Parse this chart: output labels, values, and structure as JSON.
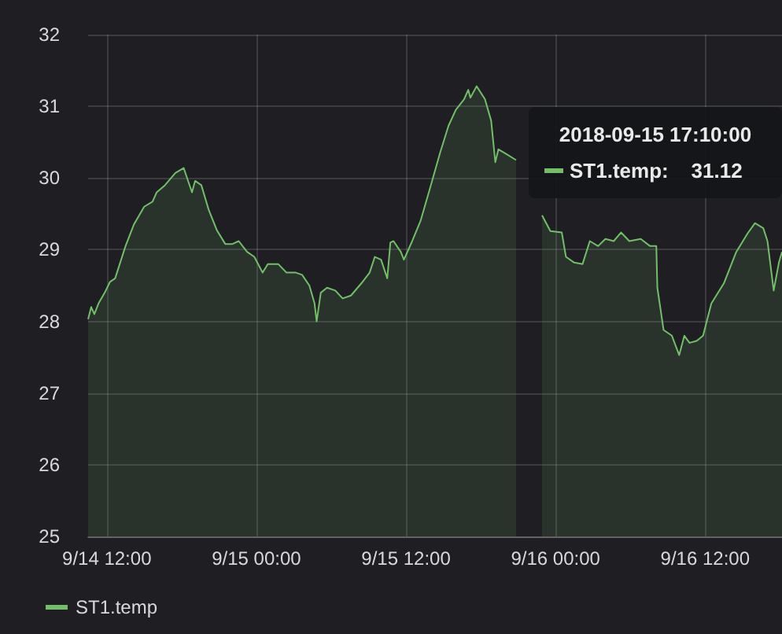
{
  "chart_data": {
    "type": "area",
    "ylim": [
      25,
      32
    ],
    "yticks": [
      25,
      26,
      27,
      28,
      29,
      30,
      31,
      32
    ],
    "xlim": [
      "2018-09-14T10:30",
      "2018-09-16T18:10"
    ],
    "xticks": [
      {
        "value": "2018-09-14T12:00",
        "label": "9/14 12:00"
      },
      {
        "value": "2018-09-15T00:00",
        "label": "9/15 00:00"
      },
      {
        "value": "2018-09-15T12:00",
        "label": "9/15 12:00"
      },
      {
        "value": "2018-09-16T00:00",
        "label": "9/16 00:00"
      },
      {
        "value": "2018-09-16T12:00",
        "label": "9/16 12:00"
      }
    ],
    "grid": true,
    "legend": "bottom left",
    "marker": "none",
    "annotations": [
      "2018-09-15 17:10:00\nST1.temp:    31.12"
    ],
    "x": [
      "2018-09-14T10:30",
      "2018-09-14T10:45",
      "2018-09-14T11:00",
      "2018-09-14T11:20",
      "2018-09-14T11:50",
      "2018-09-14T12:15",
      "2018-09-14T12:40",
      "2018-09-14T13:30",
      "2018-09-14T14:10",
      "2018-09-14T15:00",
      "2018-09-14T15:40",
      "2018-09-14T16:00",
      "2018-09-14T16:40",
      "2018-09-14T17:30",
      "2018-09-14T18:10",
      "2018-09-14T18:50",
      "2018-09-14T19:05",
      "2018-09-14T19:35",
      "2018-09-14T20:10",
      "2018-09-14T20:50",
      "2018-09-14T21:30",
      "2018-09-14T22:05",
      "2018-09-14T22:35",
      "2018-09-14T23:15",
      "2018-09-14T23:50",
      "2018-09-15T00:30",
      "2018-09-15T00:55",
      "2018-09-15T01:45",
      "2018-09-15T02:25",
      "2018-09-15T03:10",
      "2018-09-15T03:40",
      "2018-09-15T04:15",
      "2018-09-15T04:40",
      "2018-09-15T04:50",
      "2018-09-15T05:10",
      "2018-09-15T05:40",
      "2018-09-15T06:20",
      "2018-09-15T06:55",
      "2018-09-15T07:35",
      "2018-09-15T08:25",
      "2018-09-15T09:05",
      "2018-09-15T09:30",
      "2018-09-15T10:00",
      "2018-09-15T10:30",
      "2018-09-15T10:45",
      "2018-09-15T11:00",
      "2018-09-15T11:35",
      "2018-09-15T11:50",
      "2018-09-15T12:30",
      "2018-09-15T13:10",
      "2018-09-15T13:55",
      "2018-09-15T14:45",
      "2018-09-15T15:25",
      "2018-09-15T16:00",
      "2018-09-15T16:40",
      "2018-09-15T17:00",
      "2018-09-15T17:10",
      "2018-09-15T17:40",
      "2018-09-15T18:20",
      "2018-09-15T18:50",
      "2018-09-15T19:10",
      "2018-09-15T19:25",
      "2018-09-15T20:05",
      "2018-09-15T20:50",
      "2018-09-15T21:55",
      "2018-09-15T22:55",
      "2018-09-15T23:35",
      "2018-09-16T00:30",
      "2018-09-16T00:50",
      "2018-09-16T01:30",
      "2018-09-16T02:10",
      "2018-09-16T02:45",
      "2018-09-16T03:25",
      "2018-09-16T04:00",
      "2018-09-16T04:40",
      "2018-09-16T05:15",
      "2018-09-16T05:55",
      "2018-09-16T06:50",
      "2018-09-16T07:35",
      "2018-09-16T08:05",
      "2018-09-16T08:10",
      "2018-09-16T08:40",
      "2018-09-16T09:20",
      "2018-09-16T09:55",
      "2018-09-16T10:20",
      "2018-09-16T10:45",
      "2018-09-16T11:20",
      "2018-09-16T11:50",
      "2018-09-16T12:30",
      "2018-09-16T13:30",
      "2018-09-16T14:30",
      "2018-09-16T15:25",
      "2018-09-16T16:00",
      "2018-09-16T16:40",
      "2018-09-16T17:00",
      "2018-09-16T17:30",
      "2018-09-16T17:55",
      "2018-09-16T18:10"
    ],
    "series": [
      {
        "name": "ST1.temp",
        "color": "#73bf69",
        "values": [
          28.03,
          28.2,
          28.1,
          28.25,
          28.4,
          28.55,
          28.6,
          29.05,
          29.35,
          29.6,
          29.67,
          29.8,
          29.9,
          30.07,
          30.14,
          29.8,
          29.96,
          29.9,
          29.56,
          29.27,
          29.08,
          29.08,
          29.12,
          28.97,
          28.9,
          28.68,
          28.8,
          28.8,
          28.68,
          28.68,
          28.65,
          28.5,
          28.25,
          28.0,
          28.4,
          28.47,
          28.43,
          28.32,
          28.36,
          28.53,
          28.68,
          28.9,
          28.86,
          28.6,
          29.1,
          29.12,
          28.97,
          28.86,
          29.12,
          29.4,
          29.85,
          30.36,
          30.73,
          30.95,
          31.1,
          31.23,
          31.12,
          31.28,
          31.1,
          30.8,
          30.22,
          30.4,
          30.33,
          30.25,
          null,
          29.48,
          29.26,
          29.24,
          28.9,
          28.82,
          28.8,
          29.12,
          29.05,
          29.15,
          29.12,
          29.24,
          29.12,
          29.15,
          29.05,
          29.05,
          28.47,
          27.88,
          27.8,
          27.53,
          27.8,
          27.7,
          27.73,
          27.8,
          28.25,
          28.53,
          28.97,
          29.23,
          29.37,
          29.3,
          29.12,
          28.43,
          28.82,
          28.97
        ]
      }
    ]
  }
}
